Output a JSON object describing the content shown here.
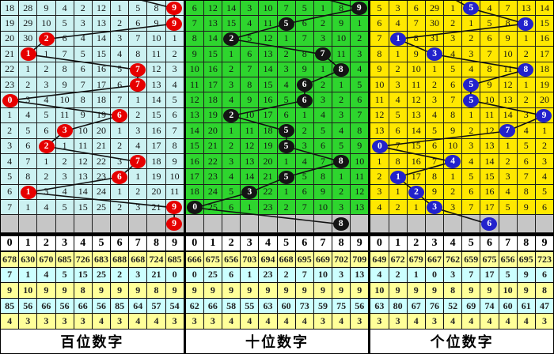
{
  "colors": {
    "line": "#111111",
    "gray_row": "#C6C6C6",
    "stats_yellow": "#FFFF99",
    "stats_cyan": "#CCFFFF",
    "header_bg": "#FFFFFF"
  },
  "chart_data": [
    {
      "type": "table",
      "id": "hundreds",
      "title": "百位数字",
      "colors": {
        "grid_bg": "#CCF2F2",
        "ball": "#E60000"
      },
      "columns": [
        "0",
        "1",
        "2",
        "3",
        "4",
        "5",
        "6",
        "7",
        "8",
        "9"
      ],
      "rows": [
        [
          18,
          28,
          9,
          4,
          2,
          12,
          1,
          5,
          8,
          9
        ],
        [
          19,
          29,
          10,
          5,
          3,
          13,
          2,
          6,
          9,
          9
        ],
        [
          20,
          30,
          2,
          6,
          4,
          14,
          3,
          7,
          10,
          1
        ],
        [
          21,
          1,
          1,
          7,
          5,
          15,
          4,
          8,
          11,
          2
        ],
        [
          22,
          1,
          2,
          8,
          6,
          16,
          5,
          7,
          12,
          3
        ],
        [
          23,
          2,
          3,
          9,
          7,
          17,
          6,
          7,
          13,
          4
        ],
        [
          0,
          3,
          4,
          10,
          8,
          18,
          7,
          1,
          14,
          5
        ],
        [
          1,
          4,
          5,
          11,
          9,
          19,
          6,
          2,
          15,
          6
        ],
        [
          2,
          5,
          6,
          3,
          10,
          20,
          1,
          3,
          16,
          7
        ],
        [
          3,
          6,
          2,
          1,
          11,
          21,
          2,
          4,
          17,
          8
        ],
        [
          4,
          7,
          1,
          2,
          12,
          22,
          3,
          7,
          18,
          9
        ],
        [
          5,
          8,
          2,
          3,
          13,
          23,
          6,
          1,
          19,
          10
        ],
        [
          6,
          1,
          3,
          4,
          14,
          24,
          1,
          2,
          20,
          11
        ],
        [
          7,
          1,
          4,
          5,
          15,
          25,
          2,
          3,
          21,
          9
        ]
      ],
      "ball_cols": [
        9,
        9,
        2,
        1,
        7,
        7,
        0,
        6,
        3,
        2,
        7,
        6,
        1,
        9
      ],
      "tail_ball": {
        "col": 9,
        "label": "9"
      },
      "stats": [
        [
          678,
          630,
          670,
          685,
          726,
          683,
          688,
          668,
          724,
          685
        ],
        [
          7,
          1,
          4,
          5,
          15,
          25,
          2,
          3,
          21,
          0
        ],
        [
          9,
          10,
          9,
          9,
          8,
          9,
          9,
          9,
          8,
          9
        ],
        [
          85,
          56,
          66,
          56,
          66,
          56,
          85,
          64,
          57,
          54
        ],
        [
          4,
          3,
          3,
          3,
          3,
          4,
          3,
          4,
          4,
          3
        ]
      ]
    },
    {
      "type": "table",
      "id": "tens",
      "title": "十位数字",
      "colors": {
        "grid_bg": "#2ED52E",
        "ball": "#141414"
      },
      "columns": [
        "0",
        "1",
        "2",
        "3",
        "4",
        "5",
        "6",
        "7",
        "8",
        "9"
      ],
      "rows": [
        [
          6,
          12,
          14,
          3,
          10,
          7,
          5,
          1,
          8,
          9
        ],
        [
          7,
          13,
          15,
          4,
          11,
          5,
          6,
          2,
          9,
          1
        ],
        [
          8,
          14,
          2,
          5,
          12,
          1,
          7,
          3,
          10,
          2
        ],
        [
          9,
          15,
          1,
          6,
          13,
          2,
          8,
          7,
          11,
          3
        ],
        [
          10,
          16,
          2,
          7,
          14,
          3,
          9,
          1,
          8,
          4
        ],
        [
          11,
          17,
          3,
          8,
          15,
          4,
          6,
          2,
          1,
          5
        ],
        [
          12,
          18,
          4,
          9,
          16,
          5,
          6,
          3,
          2,
          6
        ],
        [
          13,
          19,
          2,
          10,
          17,
          6,
          1,
          4,
          3,
          7
        ],
        [
          14,
          20,
          1,
          11,
          18,
          5,
          2,
          5,
          4,
          8
        ],
        [
          15,
          21,
          2,
          12,
          19,
          5,
          3,
          6,
          5,
          9
        ],
        [
          16,
          22,
          3,
          13,
          20,
          1,
          4,
          7,
          8,
          10
        ],
        [
          17,
          23,
          4,
          14,
          21,
          5,
          5,
          8,
          1,
          11
        ],
        [
          18,
          24,
          5,
          3,
          22,
          1,
          6,
          9,
          2,
          12
        ],
        [
          0,
          25,
          6,
          1,
          23,
          2,
          7,
          10,
          3,
          13
        ]
      ],
      "ball_cols": [
        9,
        5,
        2,
        7,
        8,
        6,
        6,
        2,
        5,
        5,
        8,
        5,
        3,
        0
      ],
      "tail_ball": {
        "col": 8,
        "label": "8"
      },
      "stats": [
        [
          666,
          675,
          656,
          703,
          694,
          668,
          695,
          669,
          702,
          709
        ],
        [
          0,
          25,
          6,
          1,
          23,
          2,
          7,
          10,
          3,
          13
        ],
        [
          9,
          9,
          9,
          9,
          9,
          9,
          9,
          9,
          9,
          9
        ],
        [
          62,
          66,
          58,
          55,
          63,
          60,
          73,
          59,
          75,
          56
        ],
        [
          3,
          3,
          4,
          4,
          4,
          4,
          4,
          3,
          4,
          3
        ]
      ]
    },
    {
      "type": "table",
      "id": "units",
      "title": "个位数字",
      "colors": {
        "grid_bg": "#FFE800",
        "ball": "#2222CC"
      },
      "columns": [
        "0",
        "1",
        "2",
        "3",
        "4",
        "5",
        "6",
        "7",
        "8",
        "9"
      ],
      "rows": [
        [
          5,
          3,
          6,
          29,
          1,
          5,
          4,
          7,
          13,
          14
        ],
        [
          6,
          4,
          7,
          30,
          2,
          1,
          5,
          8,
          8,
          15
        ],
        [
          7,
          1,
          8,
          31,
          3,
          2,
          6,
          9,
          1,
          16
        ],
        [
          8,
          1,
          9,
          3,
          4,
          3,
          7,
          10,
          2,
          17
        ],
        [
          9,
          2,
          10,
          1,
          5,
          4,
          8,
          11,
          8,
          18
        ],
        [
          10,
          3,
          11,
          2,
          6,
          5,
          9,
          12,
          1,
          19
        ],
        [
          11,
          4,
          12,
          3,
          7,
          5,
          10,
          13,
          2,
          20
        ],
        [
          12,
          5,
          13,
          4,
          8,
          1,
          11,
          14,
          3,
          9
        ],
        [
          13,
          6,
          14,
          5,
          9,
          2,
          12,
          7,
          4,
          1
        ],
        [
          0,
          7,
          15,
          6,
          10,
          3,
          13,
          1,
          5,
          2
        ],
        [
          1,
          8,
          16,
          7,
          4,
          4,
          14,
          2,
          6,
          3
        ],
        [
          2,
          1,
          17,
          8,
          1,
          5,
          15,
          3,
          7,
          4
        ],
        [
          3,
          1,
          2,
          9,
          2,
          6,
          16,
          4,
          8,
          5
        ],
        [
          4,
          2,
          1,
          3,
          3,
          7,
          17,
          5,
          9,
          6
        ]
      ],
      "ball_cols": [
        5,
        8,
        1,
        3,
        8,
        5,
        5,
        9,
        7,
        0,
        4,
        1,
        2,
        3
      ],
      "tail_ball": {
        "col": 6,
        "label": "6"
      },
      "stats": [
        [
          649,
          672,
          679,
          667,
          762,
          659,
          675,
          656,
          695,
          723
        ],
        [
          4,
          2,
          1,
          0,
          3,
          7,
          17,
          5,
          9,
          6
        ],
        [
          10,
          9,
          9,
          9,
          8,
          9,
          9,
          10,
          9,
          8
        ],
        [
          63,
          80,
          67,
          76,
          52,
          69,
          74,
          60,
          61,
          47
        ],
        [
          3,
          3,
          4,
          3,
          4,
          4,
          4,
          4,
          4,
          3
        ]
      ]
    }
  ]
}
